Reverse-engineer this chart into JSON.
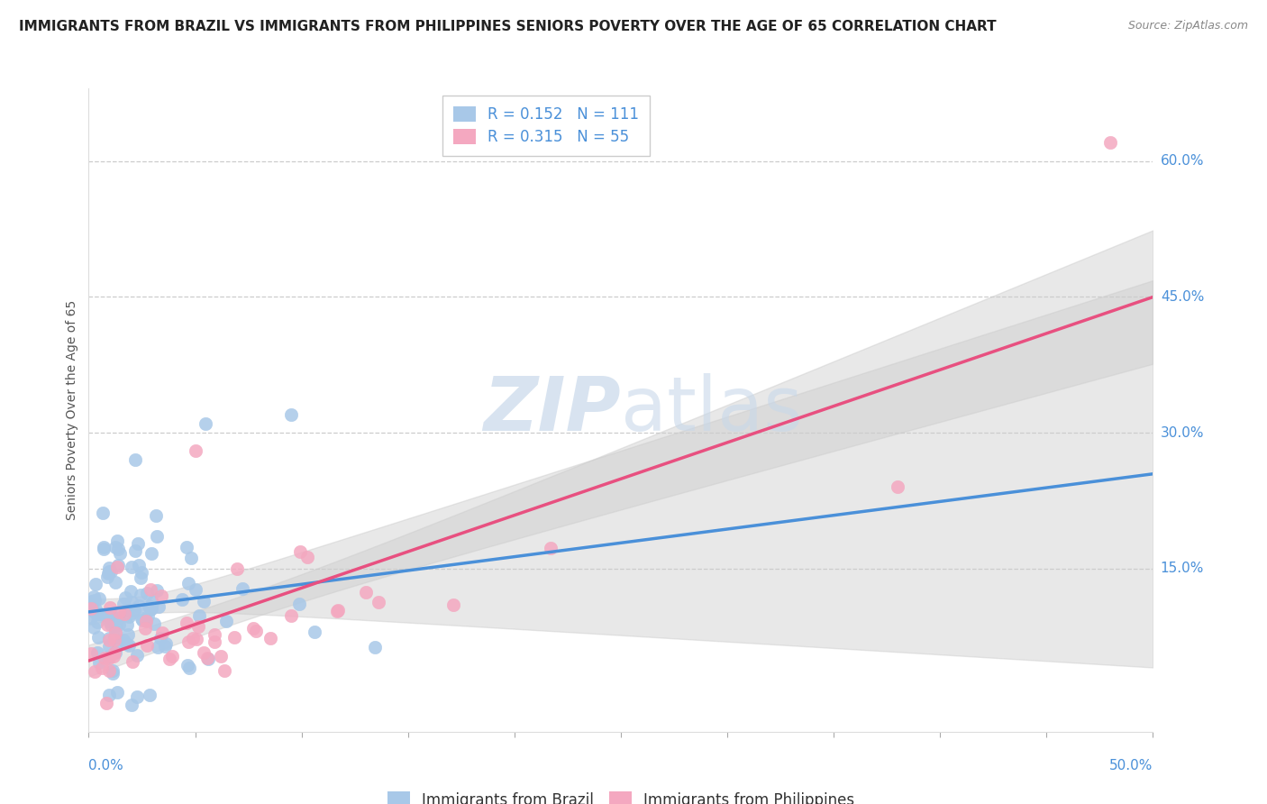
{
  "title": "IMMIGRANTS FROM BRAZIL VS IMMIGRANTS FROM PHILIPPINES SENIORS POVERTY OVER THE AGE OF 65 CORRELATION CHART",
  "source": "Source: ZipAtlas.com",
  "ylabel": "Seniors Poverty Over the Age of 65",
  "right_yticks": [
    0.0,
    0.15,
    0.3,
    0.45,
    0.6
  ],
  "right_ytick_labels": [
    "",
    "15.0%",
    "30.0%",
    "45.0%",
    "60.0%"
  ],
  "xlim": [
    0.0,
    0.5
  ],
  "ylim": [
    -0.03,
    0.68
  ],
  "brazil_R": 0.152,
  "brazil_N": 111,
  "philippines_R": 0.315,
  "philippines_N": 55,
  "brazil_color": "#a8c8e8",
  "philippines_color": "#f4a8c0",
  "brazil_line_color": "#4a90d9",
  "philippines_line_color": "#e85080",
  "watermark_zip": "ZIP",
  "watermark_atlas": "atlas",
  "legend_label_brazil": "Immigrants from Brazil",
  "legend_label_philippines": "Immigrants from Philippines",
  "title_fontsize": 11,
  "source_fontsize": 9,
  "axis_label_fontsize": 10,
  "tick_fontsize": 11,
  "legend_fontsize": 12
}
